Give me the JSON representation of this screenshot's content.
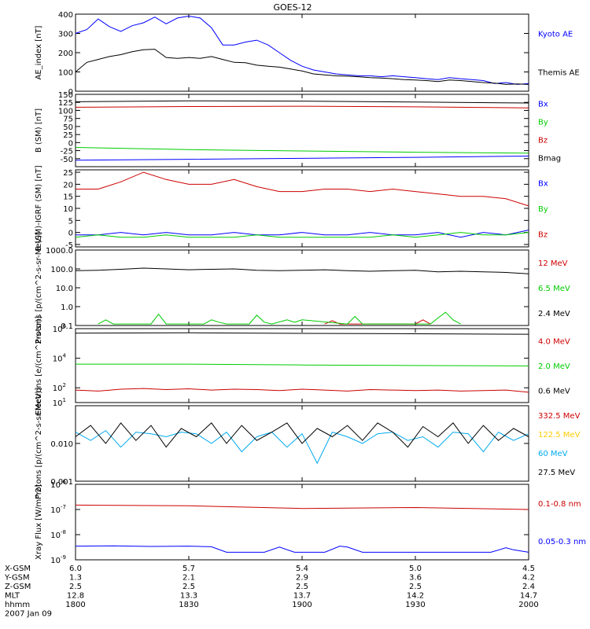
{
  "title": "GOES-12",
  "chart_data": [
    {
      "type": "line",
      "ylabel": "AE_index [nT]",
      "ylim": [
        0,
        400
      ],
      "yscale": "linear",
      "yticks": [
        0,
        100,
        200,
        300,
        400
      ],
      "series": [
        {
          "name": "Kyoto AE",
          "color": "#0000ff",
          "x": [
            0,
            3,
            6,
            9,
            12,
            15,
            18,
            21,
            24,
            27,
            30,
            33,
            36,
            39,
            42,
            45,
            48,
            51,
            54,
            57,
            60,
            63,
            66,
            69,
            72,
            75,
            78,
            81,
            84,
            87,
            90,
            93,
            96,
            99,
            102,
            105,
            108,
            111,
            114,
            117,
            120
          ],
          "y": [
            300,
            320,
            375,
            335,
            310,
            340,
            355,
            385,
            350,
            380,
            390,
            380,
            330,
            240,
            240,
            255,
            265,
            240,
            200,
            160,
            130,
            110,
            100,
            90,
            85,
            80,
            80,
            75,
            80,
            75,
            70,
            65,
            60,
            70,
            65,
            60,
            55,
            40,
            45,
            35,
            40
          ]
        },
        {
          "name": "Themis AE",
          "color": "#000000",
          "x": [
            0,
            3,
            6,
            9,
            12,
            15,
            18,
            21,
            24,
            27,
            30,
            33,
            36,
            39,
            42,
            45,
            48,
            51,
            54,
            57,
            60,
            63,
            66,
            69,
            72,
            75,
            78,
            81,
            84,
            87,
            90,
            93,
            96,
            99,
            102,
            105,
            108,
            111,
            114,
            117,
            120
          ],
          "y": [
            100,
            150,
            165,
            180,
            190,
            205,
            215,
            218,
            175,
            170,
            175,
            170,
            180,
            165,
            150,
            148,
            135,
            130,
            125,
            115,
            105,
            90,
            85,
            80,
            78,
            75,
            70,
            68,
            65,
            60,
            58,
            55,
            50,
            58,
            55,
            50,
            45,
            42,
            35,
            38,
            35
          ]
        }
      ]
    },
    {
      "type": "line",
      "ylabel": "B (SM) [nT]",
      "ylim": [
        -75,
        150
      ],
      "yscale": "linear",
      "yticks": [
        -50,
        -25,
        0,
        25,
        50,
        75,
        100,
        125,
        150
      ],
      "series": [
        {
          "name": "Bx",
          "color": "#0000ff",
          "x": [
            0,
            30,
            60,
            90,
            120
          ],
          "y": [
            -55,
            -52,
            -49,
            -46,
            -42
          ]
        },
        {
          "name": "By",
          "color": "#00cc00",
          "x": [
            0,
            30,
            60,
            90,
            120
          ],
          "y": [
            -15,
            -22,
            -26,
            -30,
            -33
          ]
        },
        {
          "name": "Bz",
          "color": "#cc0000",
          "x": [
            0,
            30,
            60,
            90,
            120
          ],
          "y": [
            110,
            112,
            113,
            111,
            108
          ]
        },
        {
          "name": "Bmag",
          "color": "#000000",
          "x": [
            0,
            30,
            60,
            90,
            120
          ],
          "y": [
            127,
            130,
            129,
            126,
            123
          ]
        }
      ]
    },
    {
      "type": "line",
      "ylabel": "B (SM)-IGRF (SM) [nT]",
      "ylim": [
        -6,
        26
      ],
      "yscale": "linear",
      "yticks": [
        -5,
        0,
        5,
        10,
        15,
        20,
        25
      ],
      "series": [
        {
          "name": "Bx",
          "color": "#0000ff",
          "x": [
            0,
            6,
            12,
            18,
            24,
            30,
            36,
            42,
            48,
            54,
            60,
            66,
            72,
            78,
            84,
            90,
            96,
            102,
            108,
            114,
            120
          ],
          "y": [
            -1,
            -1,
            0,
            -1,
            0,
            -1,
            -1,
            0,
            -1,
            -1,
            0,
            -1,
            -1,
            0,
            -1,
            -1,
            0,
            -2,
            0,
            -1,
            1
          ]
        },
        {
          "name": "By",
          "color": "#00cc00",
          "x": [
            0,
            6,
            12,
            18,
            24,
            30,
            36,
            42,
            48,
            54,
            60,
            66,
            72,
            78,
            84,
            90,
            96,
            102,
            108,
            114,
            120
          ],
          "y": [
            -2,
            -1,
            -2,
            -2,
            -1,
            -2,
            -2,
            -2,
            -1,
            -2,
            -2,
            -2,
            -2,
            -2,
            -1,
            -2,
            -1,
            0,
            -1,
            -1,
            0
          ]
        },
        {
          "name": "Bz",
          "color": "#cc0000",
          "x": [
            0,
            6,
            12,
            18,
            24,
            30,
            36,
            42,
            48,
            54,
            60,
            66,
            72,
            78,
            84,
            90,
            96,
            102,
            108,
            114,
            120
          ],
          "y": [
            18,
            18,
            21,
            25,
            22,
            20,
            20,
            22,
            19,
            17,
            17,
            18,
            18,
            17,
            18,
            17,
            16,
            15,
            15,
            14,
            11
          ]
        }
      ]
    },
    {
      "type": "line",
      "ylabel": "Protons [p/(cm^2-s-sr-MeV)]",
      "ylim": [
        0.1,
        1000
      ],
      "yscale": "log",
      "yticks": [
        0.1,
        1.0,
        10.0,
        100.0,
        1000.0
      ],
      "yticklabels": [
        "0.1",
        "1.0",
        "10.0",
        "100.0",
        "1000.0"
      ],
      "series": [
        {
          "name": "12 MeV",
          "color": "#cc0000",
          "x": [
            66,
            68,
            70,
            90,
            92,
            94
          ],
          "y": [
            0.12,
            0.18,
            0.12,
            0.12,
            0.2,
            0.12
          ]
        },
        {
          "name": "6.5 MeV",
          "color": "#00cc00",
          "x": [
            6,
            8,
            10,
            20,
            22,
            24,
            34,
            36,
            38,
            40,
            46,
            48,
            50,
            52,
            56,
            58,
            60,
            72,
            74,
            76,
            94,
            96,
            98,
            100,
            102
          ],
          "y": [
            0.12,
            0.2,
            0.12,
            0.12,
            0.4,
            0.12,
            0.12,
            0.2,
            0.15,
            0.12,
            0.12,
            0.35,
            0.15,
            0.12,
            0.2,
            0.15,
            0.2,
            0.12,
            0.3,
            0.12,
            0.12,
            0.25,
            0.5,
            0.2,
            0.12
          ]
        },
        {
          "name": "2.4 MeV",
          "color": "#000000",
          "x": [
            0,
            6,
            12,
            18,
            24,
            30,
            36,
            42,
            48,
            54,
            60,
            66,
            72,
            78,
            84,
            90,
            96,
            102,
            108,
            114,
            120
          ],
          "y": [
            80,
            85,
            95,
            110,
            100,
            90,
            95,
            100,
            85,
            80,
            85,
            90,
            80,
            75,
            80,
            85,
            70,
            75,
            70,
            65,
            55
          ]
        }
      ]
    },
    {
      "type": "line",
      "ylabel": "Electrons [e/(cm^2-s-sr)]",
      "ylim": [
        10,
        1000000
      ],
      "yscale": "log",
      "yticks": [
        10,
        100,
        10000,
        1000000
      ],
      "yticklabels": [
        "10^1",
        "10^2",
        "10^4",
        "10^6"
      ],
      "series": [
        {
          "name": "4.0 MeV",
          "color": "#cc0000",
          "x": [
            0,
            6,
            12,
            18,
            24,
            30,
            36,
            42,
            48,
            54,
            60,
            66,
            72,
            78,
            84,
            90,
            96,
            102,
            108,
            114,
            120
          ],
          "y": [
            70,
            60,
            80,
            90,
            75,
            85,
            70,
            80,
            75,
            65,
            80,
            70,
            60,
            75,
            70,
            65,
            70,
            60,
            65,
            70,
            50
          ]
        },
        {
          "name": "2.0 MeV",
          "color": "#00cc00",
          "x": [
            0,
            30,
            60,
            90,
            120
          ],
          "y": [
            4000,
            4000,
            3500,
            3200,
            3000
          ]
        },
        {
          "name": "0.6 MeV",
          "color": "#000000",
          "x": [
            0,
            30,
            60,
            90,
            120
          ],
          "y": [
            500000,
            520000,
            480000,
            450000,
            420000
          ]
        }
      ]
    },
    {
      "type": "line",
      "ylabel": "Protons [p/(cm^2-s-sr-MeV)]",
      "ylim": [
        0.001,
        0.1
      ],
      "yscale": "log",
      "yticks": [
        0.001,
        0.01
      ],
      "yticklabels": [
        "0.001",
        "0.010"
      ],
      "series": [
        {
          "name": "332.5 MeV",
          "color": "#cc0000",
          "x": [],
          "y": []
        },
        {
          "name": "122.5 MeV",
          "color": "#ffcc00",
          "x": [],
          "y": []
        },
        {
          "name": "60 MeV",
          "color": "#00aaee",
          "x": [
            0,
            4,
            8,
            12,
            16,
            20,
            24,
            28,
            32,
            36,
            40,
            44,
            48,
            52,
            56,
            60,
            64,
            68,
            72,
            76,
            80,
            84,
            88,
            92,
            96,
            100,
            104,
            108,
            112,
            116,
            120
          ],
          "y": [
            0.02,
            0.012,
            0.022,
            0.008,
            0.02,
            0.018,
            0.015,
            0.02,
            0.018,
            0.01,
            0.02,
            0.006,
            0.015,
            0.02,
            0.008,
            0.018,
            0.003,
            0.02,
            0.015,
            0.01,
            0.018,
            0.02,
            0.012,
            0.015,
            0.008,
            0.02,
            0.018,
            0.006,
            0.02,
            0.012,
            0.018
          ]
        },
        {
          "name": "27.5 MeV",
          "color": "#000000",
          "x": [
            0,
            4,
            8,
            12,
            16,
            20,
            24,
            28,
            32,
            36,
            40,
            44,
            48,
            52,
            56,
            60,
            64,
            68,
            72,
            76,
            80,
            84,
            88,
            92,
            96,
            100,
            104,
            108,
            112,
            116,
            120
          ],
          "y": [
            0.015,
            0.03,
            0.01,
            0.035,
            0.012,
            0.03,
            0.008,
            0.025,
            0.015,
            0.035,
            0.01,
            0.03,
            0.012,
            0.02,
            0.035,
            0.01,
            0.025,
            0.015,
            0.03,
            0.012,
            0.035,
            0.02,
            0.008,
            0.028,
            0.015,
            0.035,
            0.01,
            0.03,
            0.012,
            0.025,
            0.015
          ]
        }
      ]
    },
    {
      "type": "line",
      "ylabel": "Xray Flux [W/m^2]",
      "ylim": [
        1e-09,
        1e-06
      ],
      "yscale": "log",
      "yticks": [
        1e-09,
        1e-08,
        1e-07,
        1e-06
      ],
      "yticklabels": [
        "10^-9",
        "10^-8",
        "10^-7",
        "10^-6"
      ],
      "series": [
        {
          "name": "0.1-0.8 nm",
          "color": "#cc0000",
          "x": [
            0,
            30,
            60,
            90,
            120
          ],
          "y": [
            1.5e-07,
            1.4e-07,
            1.1e-07,
            1.2e-07,
            1e-07
          ]
        },
        {
          "name": "0.05-0.3 nm",
          "color": "#0000ff",
          "x": [
            0,
            10,
            20,
            30,
            36,
            40,
            50,
            54,
            58,
            60,
            66,
            70,
            72,
            76,
            80,
            90,
            100,
            110,
            114,
            116,
            120
          ],
          "y": [
            3.5e-09,
            3.6e-09,
            3.4e-09,
            3.5e-09,
            3.3e-09,
            2e-09,
            2e-09,
            3.2e-09,
            2e-09,
            2e-09,
            2e-09,
            3.5e-09,
            3.2e-09,
            2e-09,
            2e-09,
            2e-09,
            2e-09,
            2e-09,
            3e-09,
            2.5e-09,
            2e-09
          ]
        }
      ]
    }
  ],
  "x_axis": {
    "range": [
      0,
      120
    ],
    "tick_positions": [
      0,
      30,
      60,
      90,
      120
    ],
    "rows": [
      {
        "label": "X-GSM",
        "values": [
          "6.0",
          "5.7",
          "5.4",
          "5.0",
          "4.5"
        ]
      },
      {
        "label": "Y-GSM",
        "values": [
          "1.3",
          "2.1",
          "2.9",
          "3.6",
          "4.2"
        ]
      },
      {
        "label": "Z-GSM",
        "values": [
          "2.5",
          "2.5",
          "2.5",
          "2.5",
          "2.4"
        ]
      },
      {
        "label": "MLT",
        "values": [
          "12.8",
          "13.3",
          "13.7",
          "14.2",
          "14.7"
        ]
      },
      {
        "label": "hhmm",
        "values": [
          "1800",
          "1830",
          "1900",
          "1930",
          "2000"
        ]
      }
    ],
    "date": "2007 Jan 09"
  }
}
